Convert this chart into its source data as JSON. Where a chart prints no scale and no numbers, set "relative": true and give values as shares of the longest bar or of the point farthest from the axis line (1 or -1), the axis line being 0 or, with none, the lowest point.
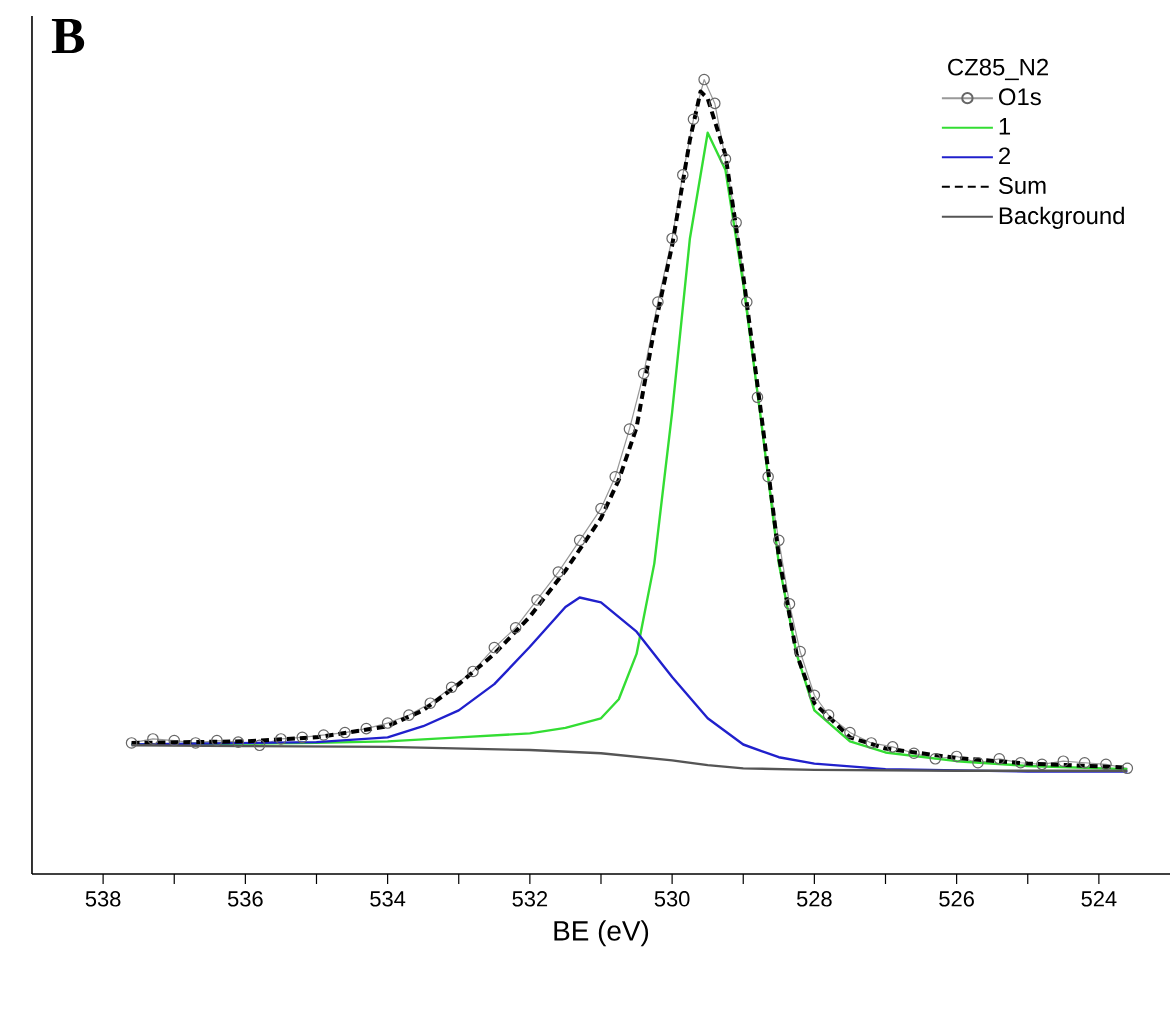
{
  "chart_data": {
    "type": "line",
    "relative": true,
    "xlabel": "BE (eV)",
    "legend_title": "CZ85_N2",
    "annotations": [
      "B"
    ],
    "xlim": [
      539,
      523
    ],
    "xticks": [
      538,
      {
        "value": 537,
        "label": null
      },
      536,
      {
        "value": 535,
        "label": null
      },
      534,
      {
        "value": 533,
        "label": null
      },
      532,
      {
        "value": 531,
        "label": null
      },
      530,
      {
        "value": 529,
        "label": null
      },
      528,
      {
        "value": 527,
        "label": null
      },
      526,
      {
        "value": 525,
        "label": null
      },
      524
    ],
    "tick_labels": "x",
    "grid": false,
    "legend": "top right",
    "series": [
      {
        "name": "O1s",
        "color": "#999999",
        "marker": "circle",
        "line_style": "solid",
        "x": [
          537.6,
          537.3,
          537.0,
          536.7,
          536.4,
          536.1,
          535.8,
          535.5,
          535.2,
          534.9,
          534.6,
          534.3,
          534.0,
          533.7,
          533.4,
          533.1,
          532.8,
          532.5,
          532.2,
          531.9,
          531.6,
          531.3,
          531.0,
          530.8,
          530.6,
          530.4,
          530.2,
          530.0,
          529.85,
          529.7,
          529.55,
          529.4,
          529.25,
          529.1,
          528.95,
          528.8,
          528.65,
          528.5,
          528.35,
          528.2,
          528.0,
          527.8,
          527.5,
          527.2,
          526.9,
          526.6,
          526.3,
          526.0,
          525.7,
          525.4,
          525.1,
          524.8,
          524.5,
          524.2,
          523.9,
          523.6
        ],
        "values": [
          0.165,
          0.17,
          0.168,
          0.165,
          0.168,
          0.166,
          0.162,
          0.17,
          0.172,
          0.175,
          0.178,
          0.183,
          0.19,
          0.2,
          0.215,
          0.235,
          0.255,
          0.285,
          0.31,
          0.345,
          0.38,
          0.42,
          0.46,
          0.5,
          0.56,
          0.63,
          0.72,
          0.8,
          0.88,
          0.95,
          1.0,
          0.97,
          0.9,
          0.82,
          0.72,
          0.6,
          0.5,
          0.42,
          0.34,
          0.28,
          0.225,
          0.2,
          0.178,
          0.165,
          0.16,
          0.152,
          0.145,
          0.148,
          0.14,
          0.145,
          0.14,
          0.138,
          0.142,
          0.14,
          0.138,
          0.133
        ]
      },
      {
        "name": "1",
        "color": "#33dd33",
        "marker": "none",
        "line_style": "solid",
        "x": [
          537.6,
          535,
          534,
          533,
          532,
          531.5,
          531,
          530.75,
          530.5,
          530.25,
          530,
          529.75,
          529.5,
          529.25,
          529,
          528.75,
          528.5,
          528.25,
          528,
          527.5,
          527,
          526,
          525,
          523.6
        ],
        "values": [
          0.163,
          0.165,
          0.167,
          0.172,
          0.177,
          0.184,
          0.196,
          0.22,
          0.277,
          0.391,
          0.581,
          0.8,
          0.933,
          0.886,
          0.743,
          0.572,
          0.391,
          0.277,
          0.206,
          0.167,
          0.153,
          0.142,
          0.136,
          0.132
        ]
      },
      {
        "name": "2",
        "color": "#2020cc",
        "marker": "none",
        "line_style": "solid",
        "x": [
          537.6,
          535,
          534,
          533.5,
          533,
          532.5,
          532,
          531.5,
          531.3,
          531,
          530.5,
          530,
          529.5,
          529,
          528.5,
          528,
          527,
          525,
          523.6
        ],
        "values": [
          0.163,
          0.166,
          0.172,
          0.186,
          0.206,
          0.239,
          0.286,
          0.336,
          0.348,
          0.342,
          0.305,
          0.248,
          0.196,
          0.163,
          0.147,
          0.139,
          0.132,
          0.129,
          0.129
        ]
      },
      {
        "name": "Sum",
        "color": "#000000",
        "marker": "none",
        "line_style": "dashed",
        "x": [
          537.6,
          536,
          535,
          534,
          533.5,
          533,
          532.5,
          532,
          531.5,
          531,
          530.75,
          530.5,
          530.25,
          530,
          529.75,
          529.6,
          529.5,
          529.25,
          529,
          528.75,
          528.5,
          528.25,
          528,
          527.5,
          527,
          526,
          525,
          523.6
        ],
        "values": [
          0.165,
          0.167,
          0.172,
          0.186,
          0.206,
          0.239,
          0.277,
          0.324,
          0.382,
          0.448,
          0.496,
          0.562,
          0.686,
          0.791,
          0.924,
          0.985,
          0.976,
          0.905,
          0.753,
          0.581,
          0.4,
          0.277,
          0.215,
          0.172,
          0.158,
          0.146,
          0.139,
          0.134
        ]
      },
      {
        "name": "Background",
        "color": "#555555",
        "marker": "none",
        "line_style": "solid",
        "x": [
          537.6,
          536,
          534,
          532,
          531,
          530,
          529.5,
          529,
          528,
          526,
          523.6
        ],
        "values": [
          0.162,
          0.161,
          0.16,
          0.156,
          0.152,
          0.143,
          0.137,
          0.133,
          0.131,
          0.13,
          0.13
        ]
      }
    ]
  }
}
